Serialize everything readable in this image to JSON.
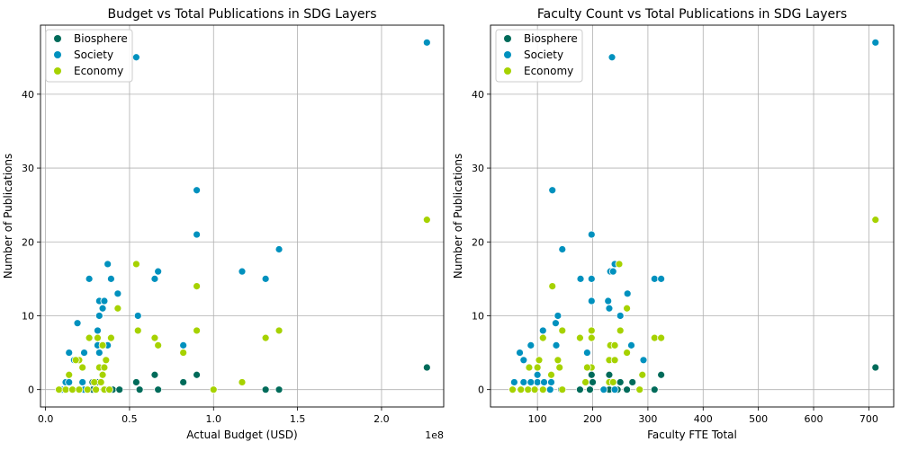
{
  "colors": {
    "Biosphere": "#006b5a",
    "Society": "#0091be",
    "Economy": "#a6d200"
  },
  "chart_data": [
    {
      "type": "scatter",
      "title": "Budget vs Total Publications in SDG Layers",
      "xlabel": "Actual Budget (USD)",
      "ylabel": "Number of Publications",
      "x_offset_label": "1e8",
      "xlim": [
        -3000000,
        237000000
      ],
      "ylim": [
        -2.35,
        49.35
      ],
      "xticks": [
        0,
        50000000,
        100000000,
        150000000,
        200000000
      ],
      "xtick_labels": [
        "0.0",
        "0.5",
        "1.0",
        "1.5",
        "2.0"
      ],
      "yticks": [
        0,
        10,
        20,
        30,
        40
      ],
      "ytick_labels": [
        "0",
        "10",
        "20",
        "30",
        "40"
      ],
      "grid": true,
      "legend": "top-left",
      "series": [
        {
          "name": "Biosphere",
          "points": [
            [
              227000000,
              3
            ],
            [
              65000000,
              2
            ],
            [
              90000000,
              2
            ],
            [
              54000000,
              1
            ],
            [
              82000000,
              1
            ],
            [
              34000000,
              2
            ],
            [
              22000000,
              1
            ],
            [
              28000000,
              1
            ],
            [
              31000000,
              1
            ],
            [
              36000000,
              0
            ],
            [
              40000000,
              0
            ],
            [
              44000000,
              0
            ],
            [
              56000000,
              0
            ],
            [
              67000000,
              0
            ],
            [
              131000000,
              0
            ],
            [
              139000000,
              0
            ],
            [
              28000000,
              0
            ]
          ]
        },
        {
          "name": "Society",
          "points": [
            [
              54000000,
              45
            ],
            [
              227000000,
              47
            ],
            [
              90000000,
              27
            ],
            [
              90000000,
              21
            ],
            [
              139000000,
              19
            ],
            [
              117000000,
              16
            ],
            [
              131000000,
              15
            ],
            [
              67000000,
              16
            ],
            [
              65000000,
              15
            ],
            [
              26000000,
              15
            ],
            [
              37000000,
              17
            ],
            [
              39000000,
              15
            ],
            [
              43000000,
              13
            ],
            [
              32000000,
              12
            ],
            [
              35000000,
              12
            ],
            [
              34000000,
              11
            ],
            [
              32000000,
              10
            ],
            [
              55000000,
              10
            ],
            [
              19000000,
              9
            ],
            [
              31000000,
              8
            ],
            [
              82000000,
              6
            ],
            [
              31000000,
              6
            ],
            [
              37000000,
              6
            ],
            [
              14000000,
              5
            ],
            [
              23000000,
              5
            ],
            [
              32000000,
              5
            ],
            [
              17000000,
              4
            ],
            [
              33000000,
              3
            ],
            [
              12000000,
              1
            ],
            [
              14000000,
              1
            ],
            [
              22000000,
              1
            ],
            [
              10000000,
              0
            ],
            [
              23000000,
              0
            ],
            [
              30000000,
              0
            ]
          ]
        },
        {
          "name": "Economy",
          "points": [
            [
              227000000,
              23
            ],
            [
              54000000,
              17
            ],
            [
              90000000,
              14
            ],
            [
              43000000,
              11
            ],
            [
              90000000,
              8
            ],
            [
              55000000,
              8
            ],
            [
              139000000,
              8
            ],
            [
              131000000,
              7
            ],
            [
              65000000,
              7
            ],
            [
              26000000,
              7
            ],
            [
              31000000,
              7
            ],
            [
              39000000,
              7
            ],
            [
              67000000,
              6
            ],
            [
              34000000,
              6
            ],
            [
              82000000,
              5
            ],
            [
              36000000,
              4
            ],
            [
              20000000,
              4
            ],
            [
              18000000,
              4
            ],
            [
              32000000,
              3
            ],
            [
              35000000,
              3
            ],
            [
              22000000,
              3
            ],
            [
              34000000,
              2
            ],
            [
              14000000,
              2
            ],
            [
              117000000,
              1
            ],
            [
              29000000,
              1
            ],
            [
              33000000,
              1
            ],
            [
              100000000,
              0
            ],
            [
              8000000,
              0
            ],
            [
              12000000,
              0
            ],
            [
              16000000,
              0
            ],
            [
              20000000,
              0
            ],
            [
              25000000,
              0
            ],
            [
              30000000,
              0
            ],
            [
              35000000,
              0
            ],
            [
              38000000,
              0
            ]
          ]
        }
      ]
    },
    {
      "type": "scatter",
      "title": "Faculty Count vs Total Publications in SDG Layers",
      "xlabel": "Faculty FTE Total",
      "ylabel": "Number of Publications",
      "xlim": [
        15,
        745
      ],
      "ylim": [
        -2.35,
        49.35
      ],
      "xticks": [
        100,
        200,
        300,
        400,
        500,
        600,
        700
      ],
      "xtick_labels": [
        "100",
        "200",
        "300",
        "400",
        "500",
        "600",
        "700"
      ],
      "yticks": [
        0,
        10,
        20,
        30,
        40
      ],
      "ytick_labels": [
        "0",
        "10",
        "20",
        "30",
        "40"
      ],
      "grid": true,
      "legend": "top-left",
      "series": [
        {
          "name": "Biosphere",
          "points": [
            [
              712,
              3
            ],
            [
              324,
              2
            ],
            [
              198,
              2
            ],
            [
              230,
              2
            ],
            [
              125,
              1
            ],
            [
              250,
              1
            ],
            [
              272,
              1
            ],
            [
              200,
              1
            ],
            [
              110,
              0
            ],
            [
              143,
              0
            ],
            [
              177,
              0
            ],
            [
              195,
              0
            ],
            [
              230,
              0
            ],
            [
              245,
              0
            ],
            [
              262,
              0
            ],
            [
              312,
              0
            ]
          ]
        },
        {
          "name": "Society",
          "points": [
            [
              235,
              45
            ],
            [
              712,
              47
            ],
            [
              127,
              27
            ],
            [
              198,
              21
            ],
            [
              145,
              19
            ],
            [
              232,
              16
            ],
            [
              240,
              17
            ],
            [
              237,
              16
            ],
            [
              312,
              15
            ],
            [
              324,
              15
            ],
            [
              178,
              15
            ],
            [
              198,
              15
            ],
            [
              263,
              13
            ],
            [
              198,
              12
            ],
            [
              228,
              12
            ],
            [
              230,
              11
            ],
            [
              137,
              10
            ],
            [
              250,
              10
            ],
            [
              133,
              9
            ],
            [
              110,
              8
            ],
            [
              134,
              6
            ],
            [
              88,
              6
            ],
            [
              190,
              5
            ],
            [
              270,
              6
            ],
            [
              68,
              5
            ],
            [
              292,
              4
            ],
            [
              75,
              4
            ],
            [
              100,
              2
            ],
            [
              100,
              1
            ],
            [
              125,
              1
            ],
            [
              58,
              1
            ],
            [
              75,
              1
            ],
            [
              88,
              1
            ],
            [
              112,
              1
            ],
            [
              123,
              0
            ],
            [
              220,
              0
            ],
            [
              240,
              0
            ]
          ]
        },
        {
          "name": "Economy",
          "points": [
            [
              712,
              23
            ],
            [
              248,
              17
            ],
            [
              127,
              14
            ],
            [
              145,
              8
            ],
            [
              198,
              8
            ],
            [
              250,
              8
            ],
            [
              262,
              11
            ],
            [
              312,
              7
            ],
            [
              324,
              7
            ],
            [
              177,
              7
            ],
            [
              198,
              7
            ],
            [
              110,
              7
            ],
            [
              232,
              6
            ],
            [
              240,
              6
            ],
            [
              262,
              5
            ],
            [
              103,
              4
            ],
            [
              137,
              4
            ],
            [
              230,
              4
            ],
            [
              240,
              4
            ],
            [
              100,
              3
            ],
            [
              198,
              3
            ],
            [
              190,
              3
            ],
            [
              85,
              3
            ],
            [
              140,
              3
            ],
            [
              187,
              1
            ],
            [
              230,
              1
            ],
            [
              237,
              1
            ],
            [
              290,
              2
            ],
            [
              125,
              2
            ],
            [
              55,
              0
            ],
            [
              70,
              0
            ],
            [
              83,
              0
            ],
            [
              95,
              0
            ],
            [
              110,
              0
            ],
            [
              145,
              0
            ],
            [
              285,
              0
            ]
          ]
        }
      ]
    }
  ]
}
